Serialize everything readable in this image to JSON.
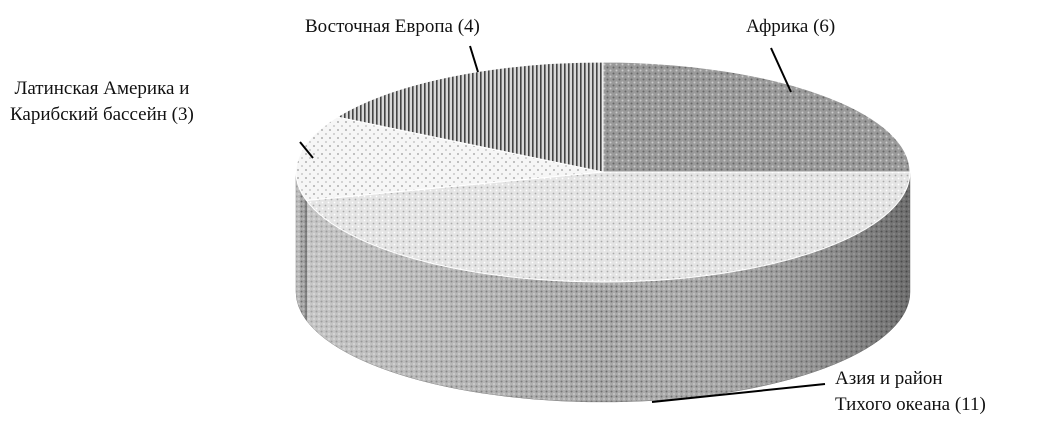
{
  "chart_data": {
    "type": "pie3d",
    "values": [
      6,
      11,
      3,
      4
    ],
    "value_labels": [
      "Африка (6)",
      "Азия и район\nТихого океана (11)",
      "Латинская Америка и\nКарибский бассейн (3)",
      "Восточная Европа (4)"
    ],
    "colors": [
      "#9a9a9a",
      "#e4e4e4",
      "#f4f4f4",
      "#bdbdbd"
    ]
  }
}
